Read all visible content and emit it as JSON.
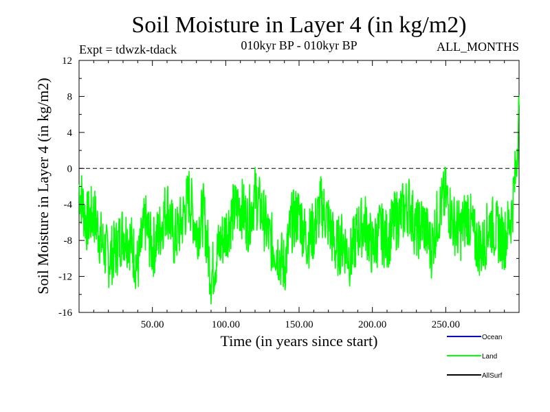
{
  "chart_data": {
    "type": "line",
    "title": "Soil Moisture in Layer 4 (in kg/m2)",
    "subtitle_left": "Expt = tdwzk-tdack",
    "subtitle_center": "010kyr BP - 010kyr BP",
    "subtitle_right": "ALL_MONTHS",
    "xlabel": "Time (in years since start)",
    "ylabel": "Soil Moisture in Layer 4 (in kg/m2)",
    "xlim": [
      0,
      300
    ],
    "ylim": [
      -16,
      12
    ],
    "xticks": [
      50,
      100,
      150,
      200,
      250
    ],
    "xtick_labels": [
      "50.00",
      "100.00",
      "150.00",
      "200.00",
      "250.00"
    ],
    "yticks": [
      -16,
      -12,
      -8,
      -4,
      0,
      4,
      8,
      12
    ],
    "ytick_labels": [
      "-16",
      "-12",
      "-8",
      "-4",
      "0",
      "4",
      "8",
      "12"
    ],
    "reference_line": {
      "y": 0,
      "style": "dashed"
    },
    "legend_position": "bottom-right",
    "legend": [
      {
        "name": "Ocean",
        "color": "#0000ff"
      },
      {
        "name": "Land",
        "color": "#00ff00"
      },
      {
        "name": "AllSurf",
        "color": "#000000"
      }
    ],
    "series": [
      {
        "name": "Land",
        "color": "#00ff00",
        "x": [
          0,
          5,
          10,
          15,
          20,
          25,
          30,
          35,
          40,
          45,
          50,
          55,
          60,
          65,
          70,
          75,
          80,
          85,
          90,
          95,
          100,
          105,
          110,
          115,
          120,
          125,
          130,
          135,
          140,
          145,
          150,
          155,
          160,
          165,
          170,
          175,
          180,
          185,
          190,
          195,
          200,
          205,
          210,
          215,
          220,
          225,
          230,
          235,
          240,
          245,
          250,
          255,
          260,
          265,
          270,
          275,
          280,
          285,
          290,
          295,
          298,
          300
        ],
        "values": [
          -2,
          -6,
          -5,
          -8,
          -10,
          -9,
          -7,
          -8,
          -11,
          -6,
          -9,
          -7,
          -4,
          -8,
          -6,
          -3,
          -7,
          -5,
          -12,
          -9,
          -7,
          -5,
          -4,
          -6,
          -3,
          -5,
          -8,
          -9,
          -11,
          -6,
          -5,
          -8,
          -7,
          -4,
          -6,
          -9,
          -8,
          -10,
          -7,
          -6,
          -9,
          -7,
          -8,
          -6,
          -5,
          -4,
          -7,
          -6,
          -9,
          -5,
          -3,
          -6,
          -7,
          -5,
          -8,
          -9,
          -6,
          -7,
          -8,
          -5,
          0,
          7
        ]
      },
      {
        "name": "Ocean",
        "color": "#0000ff",
        "x": [],
        "values": []
      },
      {
        "name": "AllSurf",
        "color": "#000000",
        "x": [],
        "values": []
      }
    ]
  }
}
